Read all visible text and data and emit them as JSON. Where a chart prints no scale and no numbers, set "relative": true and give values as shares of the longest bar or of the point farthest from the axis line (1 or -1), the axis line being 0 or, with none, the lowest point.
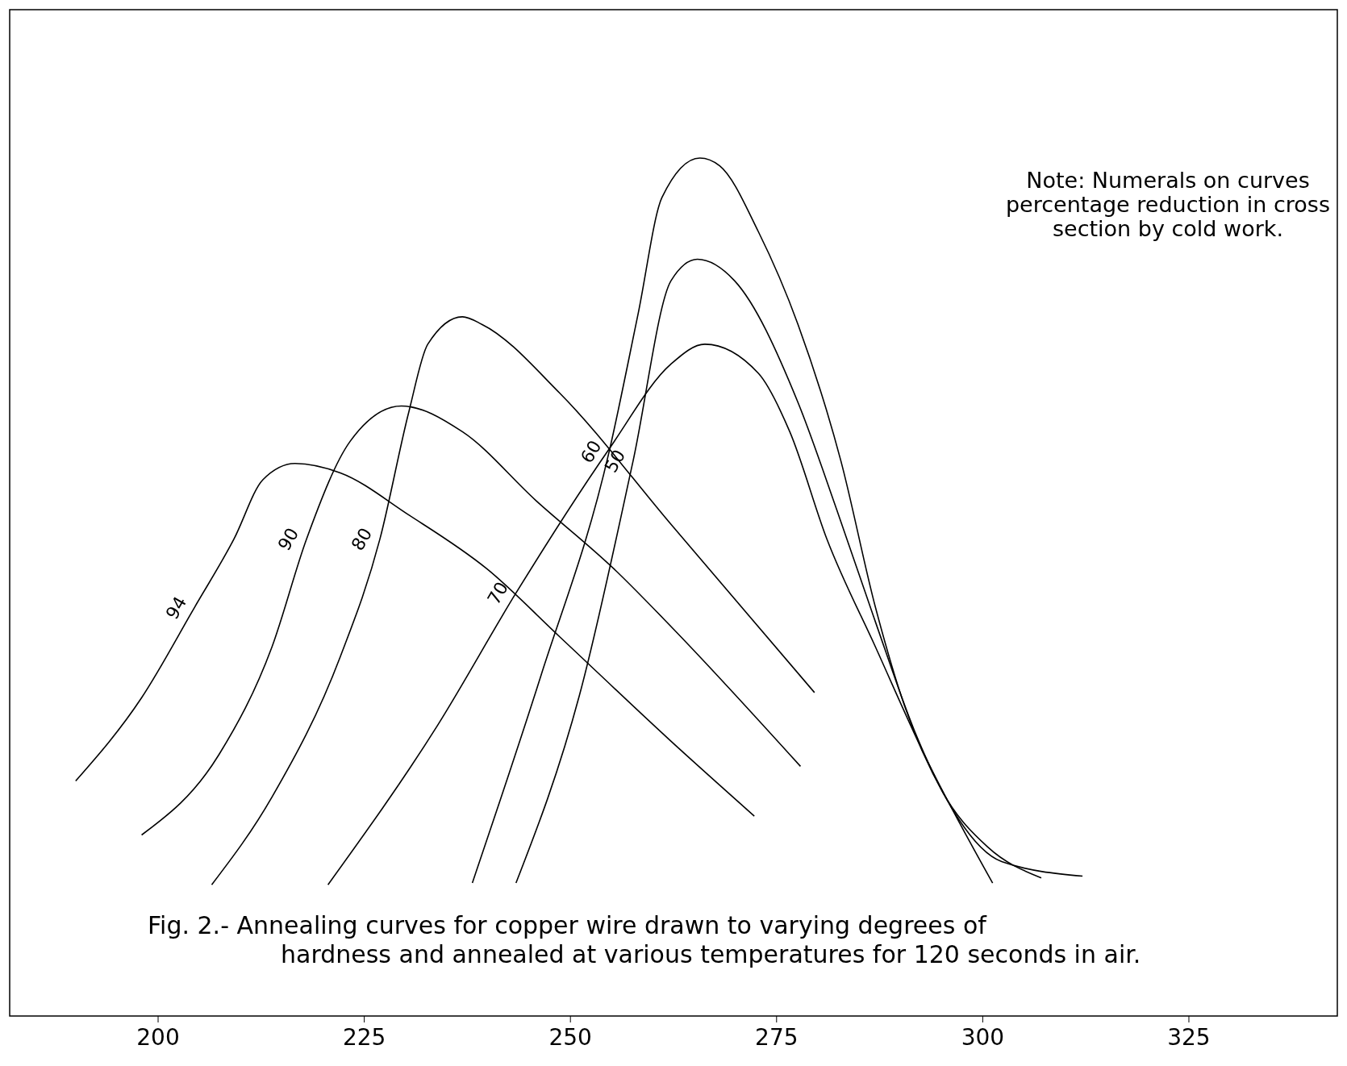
{
  "chart_data": {
    "type": "line",
    "relative": true,
    "title": "Fig. 2.- Annealing curves for copper wire drawn to varying degrees of hardness and annealed at various temperatures for 120 seconds in air.",
    "annotations": [
      "Note: Numerals on curves percentage reduction in cross section by cold work."
    ],
    "xlim": [
      182,
      343
    ],
    "xticks": [
      200,
      225,
      250,
      275,
      300,
      325
    ],
    "marker": "none",
    "line_style": "solid",
    "series": [
      {
        "name": "94",
        "color": "#000000",
        "x": [
          190.0,
          198.0,
          204.4,
          209.2,
          212.7,
          216.6,
          222.1,
          230.4,
          239.9,
          248.7,
          262.0,
          272.3
        ],
        "values": [
          0.274,
          0.371,
          0.476,
          0.556,
          0.625,
          0.644,
          0.633,
          0.584,
          0.521,
          0.442,
          0.322,
          0.233
        ]
      },
      {
        "name": "90",
        "color": "#000000",
        "x": [
          198.0,
          207.4,
          213.8,
          218.0,
          223.3,
          229.5,
          236.9,
          245.8,
          255.3,
          262.2,
          277.9
        ],
        "values": [
          0.211,
          0.305,
          0.43,
          0.556,
          0.67,
          0.711,
          0.681,
          0.601,
          0.521,
          0.454,
          0.291
        ]
      },
      {
        "name": "80",
        "color": "#000000",
        "x": [
          206.5,
          213.8,
          222.1,
          226.9,
          230.4,
          232.7,
          236.9,
          239.3,
          248.7,
          262.2,
          279.6
        ],
        "values": [
          0.153,
          0.255,
          0.419,
          0.556,
          0.704,
          0.783,
          0.815,
          0.806,
          0.726,
          0.573,
          0.377
        ]
      },
      {
        "name": "70",
        "color": "#000000",
        "x": [
          220.6,
          233.9,
          243.4,
          254.7,
          262.2,
          266.3,
          272.8,
          276.6,
          281.1,
          287.0,
          292.9,
          301.2
        ],
        "values": [
          0.153,
          0.339,
          0.493,
          0.661,
          0.76,
          0.783,
          0.749,
          0.681,
          0.556,
          0.43,
          0.305,
          0.155
        ]
      },
      {
        "name": "60",
        "color": "#000000",
        "x": [
          238.1,
          246.4,
          254.7,
          258.2,
          261.1,
          265.7,
          268.1,
          272.8,
          277.6,
          282.8,
          287.0,
          290.5,
          295.2,
          300.6,
          307.1
        ],
        "values": [
          0.155,
          0.396,
          0.658,
          0.818,
          0.954,
          1.0,
          0.991,
          0.914,
          0.806,
          0.647,
          0.476,
          0.362,
          0.26,
          0.197,
          0.161
        ]
      },
      {
        "name": "50",
        "color": "#000000",
        "x": [
          243.4,
          251.1,
          257.6,
          262.2,
          265.4,
          269.9,
          277.6,
          282.3,
          287.0,
          291.7,
          295.2,
          302.3,
          312.1
        ],
        "values": [
          0.155,
          0.374,
          0.647,
          0.857,
          0.882,
          0.857,
          0.715,
          0.59,
          0.459,
          0.333,
          0.26,
          0.18,
          0.163
        ]
      }
    ]
  }
}
